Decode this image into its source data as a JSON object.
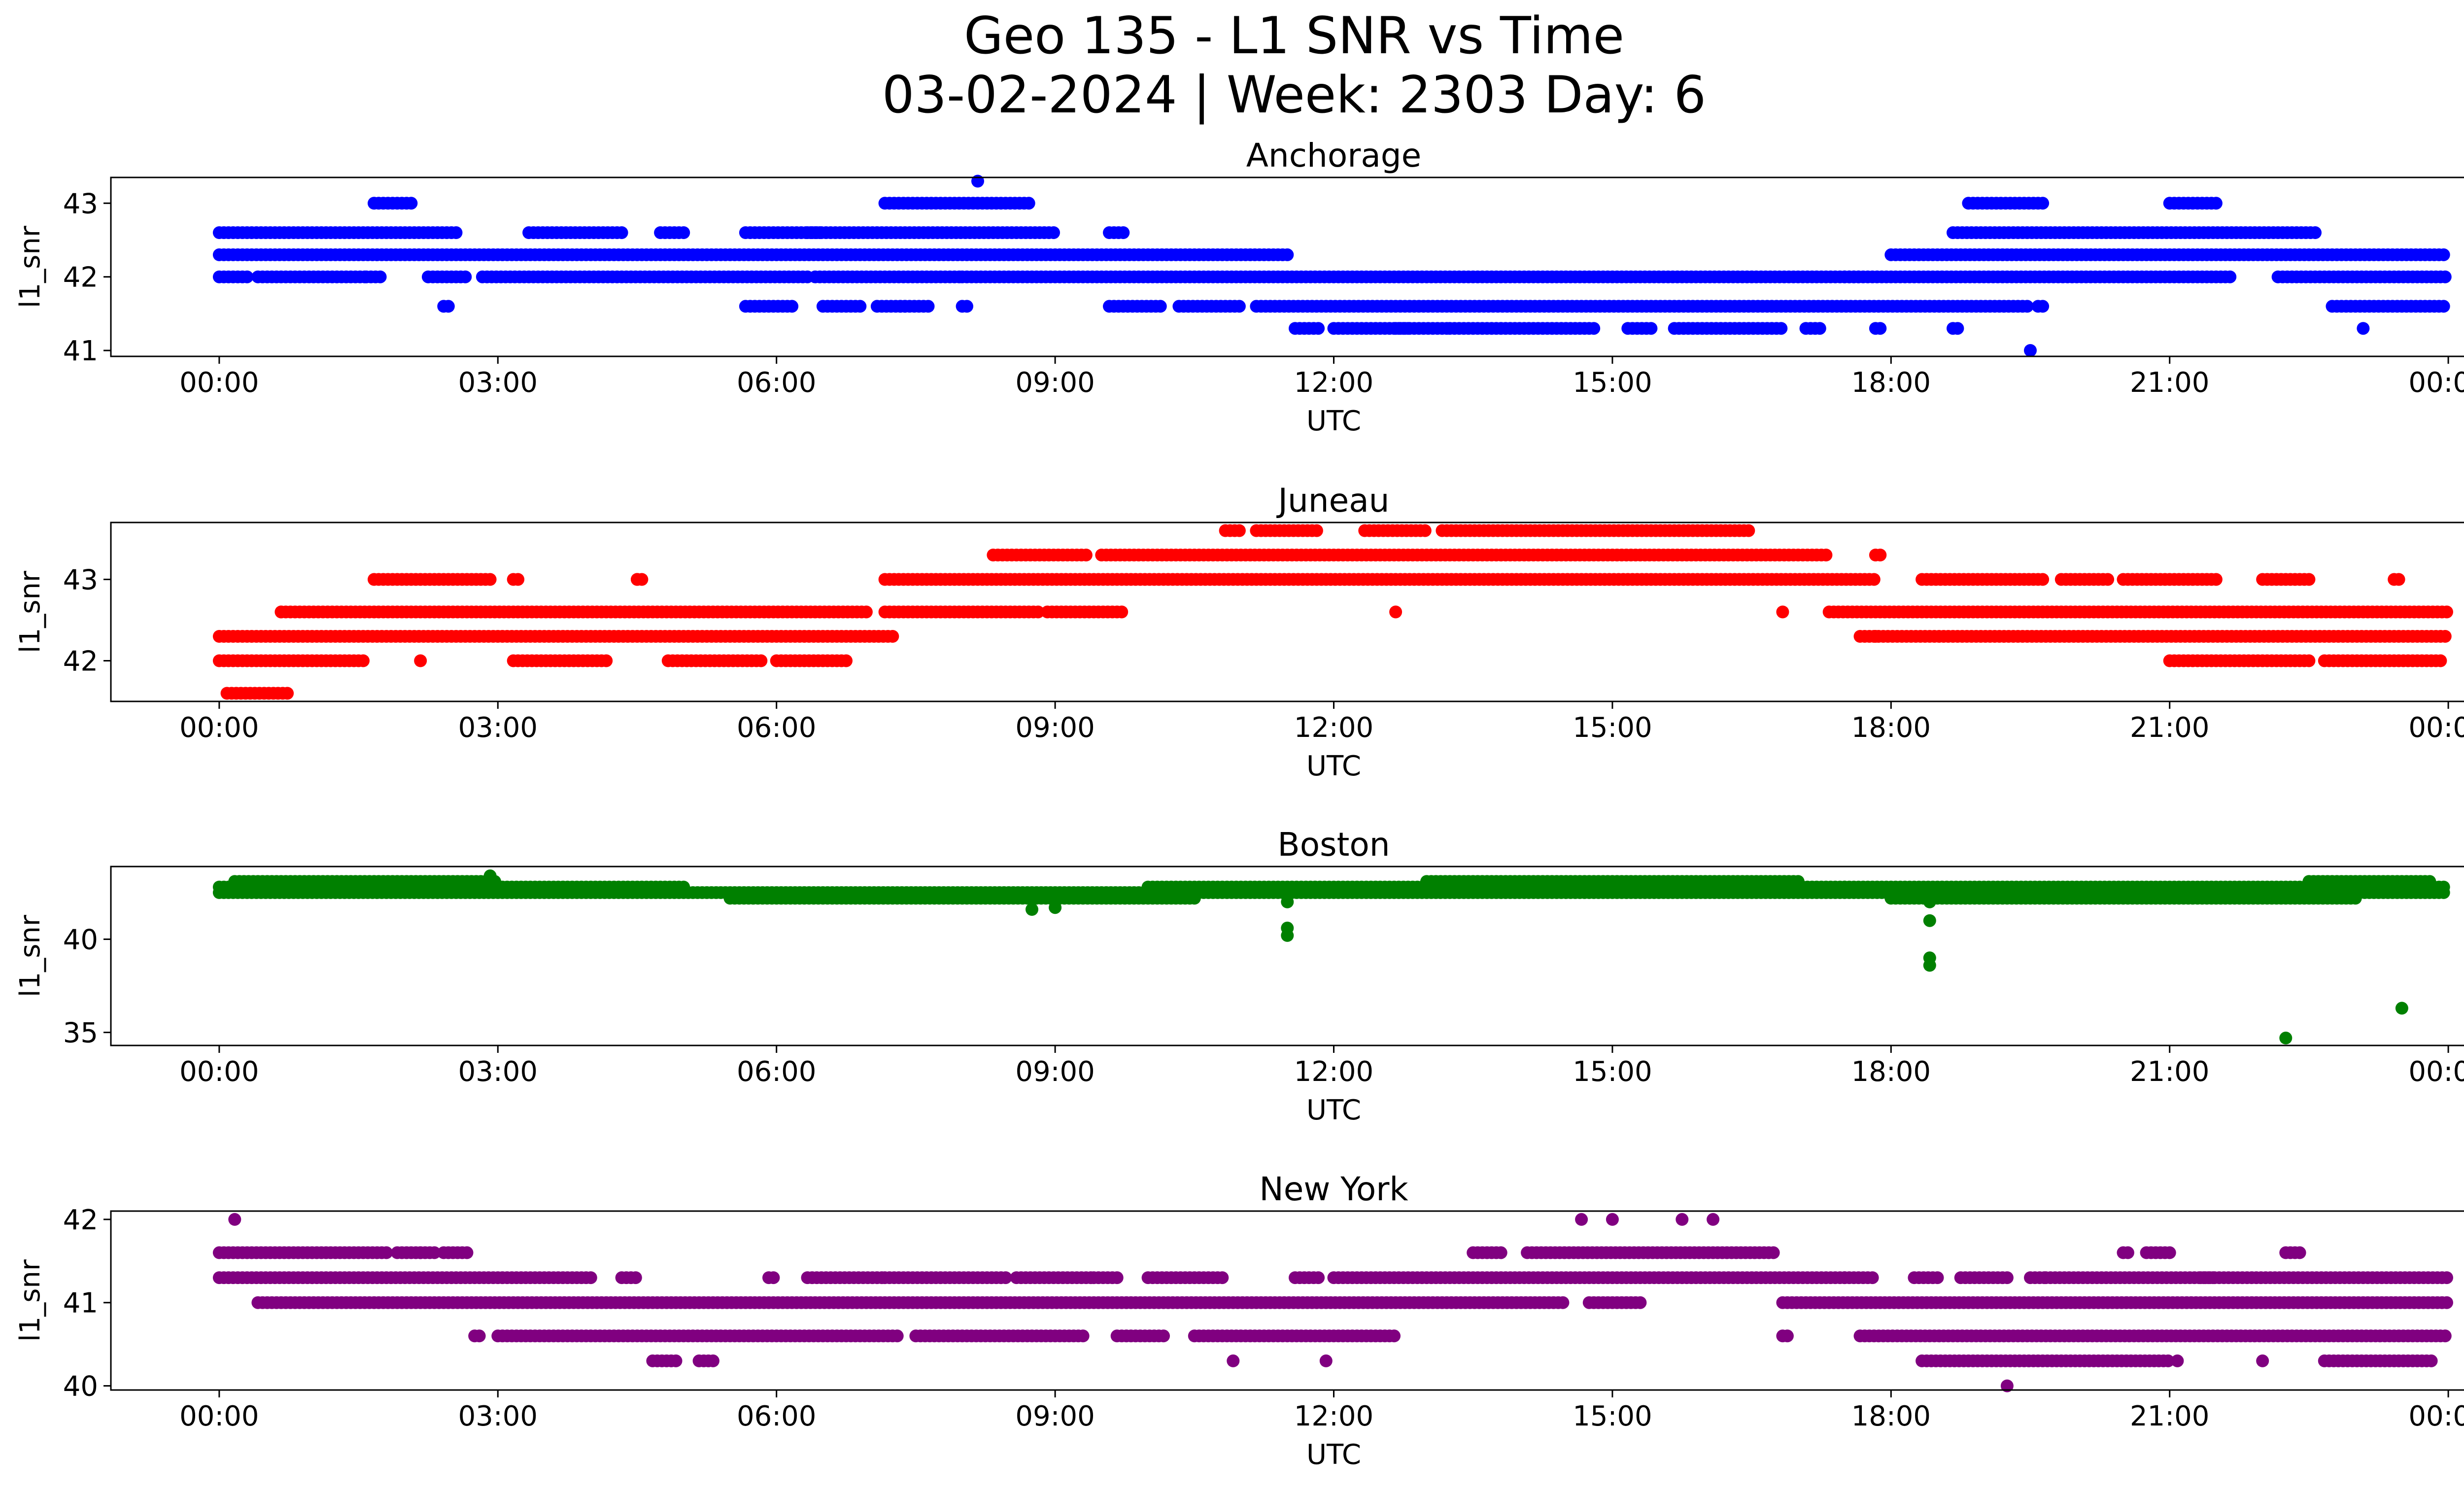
{
  "figure": {
    "title_line1": "Geo 135 - L1 SNR vs Time",
    "title_line2": "03-02-2024 | Week: 2303 Day: 6"
  },
  "chart_data": [
    {
      "type": "scatter",
      "title": "Anchorage",
      "xlabel": "UTC",
      "ylabel": "l1_snr",
      "color": "#0000ff",
      "xlim": [
        "2024-03-01 22:50",
        "2024-03-03 01:10"
      ],
      "ylim": [
        40.92,
        43.35
      ],
      "x_ticks": [
        "00:00",
        "03:00",
        "06:00",
        "09:00",
        "12:00",
        "15:00",
        "18:00",
        "21:00",
        "00:00"
      ],
      "y_ticks": [
        41,
        42,
        43
      ],
      "series": [
        {
          "bands": [
            {
              "y": 42.6,
              "segments": [
                [
                  "00:00",
                  "02:35"
                ],
                [
                  "03:20",
                  "04:20"
                ],
                [
                  "04:45",
                  "05:00"
                ],
                [
                  "05:40",
                  "06:30"
                ],
                [
                  "06:20",
                  "09:00"
                ],
                [
                  "09:35",
                  "09:45"
                ]
              ]
            },
            {
              "y": 42.3,
              "segments": [
                [
                  "00:00",
                  "11:30"
                ]
              ]
            },
            {
              "y": 42.0,
              "segments": [
                [
                  "00:00",
                  "00:20"
                ],
                [
                  "00:25",
                  "01:35"
                ],
                [
                  "01:35",
                  "01:45"
                ],
                [
                  "02:15",
                  "02:40"
                ],
                [
                  "02:50",
                  "06:20"
                ],
                [
                  "06:25",
                  "08:00"
                ],
                [
                  "08:00",
                  "17:40"
                ]
              ]
            },
            {
              "y": 41.6,
              "segments": [
                [
                  "02:25",
                  "02:30"
                ],
                [
                  "05:40",
                  "06:10"
                ],
                [
                  "06:30",
                  "06:55"
                ],
                [
                  "07:05",
                  "07:25"
                ],
                [
                  "07:20",
                  "07:40"
                ],
                [
                  "08:00",
                  "08:05"
                ],
                [
                  "09:35",
                  "10:10"
                ],
                [
                  "10:20",
                  "11:00"
                ],
                [
                  "11:10",
                  "19:30"
                ],
                [
                  "19:35",
                  "19:40"
                ]
              ]
            },
            {
              "y": 41.3,
              "segments": [
                [
                  "11:35",
                  "11:50"
                ],
                [
                  "12:00",
                  "12:50"
                ],
                [
                  "12:40",
                  "13:15"
                ],
                [
                  "13:15",
                  "14:50"
                ],
                [
                  "15:10",
                  "15:25"
                ],
                [
                  "15:40",
                  "16:50"
                ],
                [
                  "17:05",
                  "17:15"
                ],
                [
                  "17:50",
                  "17:55"
                ],
                [
                  "18:40",
                  "18:45"
                ]
              ]
            },
            {
              "y": 42.0,
              "segments": [
                [
                  "17:30",
                  "21:40"
                ],
                [
                  "22:10",
                  "23:59"
                ]
              ]
            },
            {
              "y": 42.3,
              "segments": [
                [
                  "18:00",
                  "23:59"
                ]
              ]
            },
            {
              "y": 42.6,
              "segments": [
                [
                  "18:40",
                  "22:35"
                ]
              ]
            },
            {
              "y": 43.0,
              "segments": [
                [
                  "01:40",
                  "02:05"
                ],
                [
                  "07:10",
                  "08:45"
                ],
                [
                  "18:50",
                  "19:40"
                ],
                [
                  "21:00",
                  "21:30"
                ]
              ]
            },
            {
              "y": 41.6,
              "segments": [
                [
                  "22:45",
                  "23:59"
                ]
              ]
            }
          ],
          "points": [
            [
              "08:10",
              43.3
            ],
            [
              "23:05",
              41.3
            ],
            [
              "19:30",
              41.0
            ]
          ]
        }
      ]
    },
    {
      "type": "scatter",
      "title": "Juneau",
      "xlabel": "UTC",
      "ylabel": "l1_snr",
      "color": "#ff0000",
      "xlim": [
        "2024-03-01 22:50",
        "2024-03-03 01:10"
      ],
      "ylim": [
        41.5,
        43.7
      ],
      "x_ticks": [
        "00:00",
        "03:00",
        "06:00",
        "09:00",
        "12:00",
        "15:00",
        "18:00",
        "21:00",
        "00:00"
      ],
      "y_ticks": [
        42,
        43
      ],
      "series": [
        {
          "bands": [
            {
              "y": 42.0,
              "segments": [
                [
                  "00:00",
                  "01:35"
                ],
                [
                  "03:10",
                  "04:10"
                ],
                [
                  "04:50",
                  "05:50"
                ],
                [
                  "06:00",
                  "06:45"
                ],
                [
                  "21:00",
                  "22:30"
                ],
                [
                  "22:40",
                  "23:55"
                ]
              ]
            },
            {
              "y": 42.3,
              "segments": [
                [
                  "00:00",
                  "07:15"
                ],
                [
                  "17:40",
                  "23:59"
                ]
              ]
            },
            {
              "y": 42.6,
              "segments": [
                [
                  "00:40",
                  "07:00"
                ],
                [
                  "07:10",
                  "08:50"
                ],
                [
                  "08:55",
                  "09:45"
                ],
                [
                  "17:20",
                  "23:59"
                ]
              ]
            },
            {
              "y": 43.0,
              "segments": [
                [
                  "01:40",
                  "02:55"
                ],
                [
                  "03:10",
                  "03:15"
                ],
                [
                  "04:30",
                  "04:35"
                ],
                [
                  "07:10",
                  "17:50"
                ],
                [
                  "18:20",
                  "19:40"
                ],
                [
                  "19:50",
                  "20:20"
                ],
                [
                  "20:30",
                  "21:30"
                ],
                [
                  "22:00",
                  "22:30"
                ],
                [
                  "23:25",
                  "23:30"
                ]
              ]
            },
            {
              "y": 43.3,
              "segments": [
                [
                  "08:20",
                  "09:20"
                ],
                [
                  "09:30",
                  "17:20"
                ],
                [
                  "17:50",
                  "17:55"
                ]
              ]
            },
            {
              "y": 43.6,
              "segments": [
                [
                  "10:50",
                  "11:00"
                ],
                [
                  "11:10",
                  "11:50"
                ],
                [
                  "12:20",
                  "13:00"
                ],
                [
                  "13:10",
                  "16:30"
                ]
              ]
            },
            {
              "y": 41.6,
              "segments": [
                [
                  "00:05",
                  "00:45"
                ]
              ]
            }
          ],
          "points": [
            [
              "00:40",
              42.6
            ],
            [
              "02:10",
              42.0
            ],
            [
              "04:30",
              43.0
            ],
            [
              "12:40",
              42.6
            ],
            [
              "16:50",
              42.6
            ],
            [
              "17:50",
              42.3
            ]
          ]
        }
      ]
    },
    {
      "type": "scatter",
      "title": "Boston",
      "xlabel": "UTC",
      "ylabel": "l1_snr",
      "color": "#008000",
      "xlim": [
        "2024-03-01 22:50",
        "2024-03-03 01:10"
      ],
      "ylim": [
        34.3,
        43.9
      ],
      "x_ticks": [
        "00:00",
        "03:00",
        "06:00",
        "09:00",
        "12:00",
        "15:00",
        "18:00",
        "21:00",
        "00:00"
      ],
      "y_ticks": [
        35,
        40
      ],
      "series": [
        {
          "bands": [
            {
              "y": 42.8,
              "segments": [
                [
                  "00:00",
                  "05:00"
                ],
                [
                  "10:00",
                  "17:30"
                ],
                [
                  "17:30",
                  "23:59"
                ]
              ]
            },
            {
              "y": 42.5,
              "segments": [
                [
                  "00:00",
                  "23:59"
                ]
              ]
            },
            {
              "y": 42.2,
              "segments": [
                [
                  "05:30",
                  "10:30"
                ],
                [
                  "18:00",
                  "23:00"
                ]
              ]
            },
            {
              "y": 43.1,
              "segments": [
                [
                  "00:10",
                  "03:00"
                ],
                [
                  "13:00",
                  "17:00"
                ],
                [
                  "22:30",
                  "23:50"
                ]
              ]
            }
          ],
          "points": [
            [
              "02:55",
              43.4
            ],
            [
              "11:30",
              40.6
            ],
            [
              "11:30",
              40.2
            ],
            [
              "11:30",
              42.0
            ],
            [
              "18:25",
              41.0
            ],
            [
              "18:25",
              39.0
            ],
            [
              "18:25",
              38.6
            ],
            [
              "18:25",
              42.0
            ],
            [
              "23:30",
              36.3
            ],
            [
              "22:15",
              34.7
            ],
            [
              "08:45",
              41.6
            ],
            [
              "09:00",
              41.7
            ]
          ]
        }
      ]
    },
    {
      "type": "scatter",
      "title": "New York",
      "xlabel": "UTC",
      "ylabel": "l1_snr",
      "color": "#800080",
      "xlim": [
        "2024-03-01 22:50",
        "2024-03-03 01:10"
      ],
      "ylim": [
        39.95,
        42.1
      ],
      "x_ticks": [
        "00:00",
        "03:00",
        "06:00",
        "09:00",
        "12:00",
        "15:00",
        "18:00",
        "21:00",
        "00:00"
      ],
      "y_ticks": [
        40,
        41,
        42
      ],
      "series": [
        {
          "bands": [
            {
              "y": 41.6,
              "segments": [
                [
                  "00:00",
                  "01:50"
                ],
                [
                  "01:55",
                  "02:10"
                ],
                [
                  "02:10",
                  "02:20"
                ],
                [
                  "02:25",
                  "02:40"
                ],
                [
                  "13:30",
                  "13:50"
                ],
                [
                  "14:05",
                  "16:45"
                ],
                [
                  "20:30",
                  "20:35"
                ],
                [
                  "20:45",
                  "21:00"
                ],
                [
                  "22:15",
                  "22:25"
                ]
              ]
            },
            {
              "y": 41.3,
              "segments": [
                [
                  "00:00",
                  "04:00"
                ],
                [
                  "04:20",
                  "04:30"
                ],
                [
                  "05:55",
                  "06:00"
                ],
                [
                  "06:20",
                  "07:10"
                ],
                [
                  "07:10",
                  "08:30"
                ],
                [
                  "08:35",
                  "09:25"
                ],
                [
                  "09:25",
                  "09:40"
                ],
                [
                  "10:00",
                  "10:50"
                ],
                [
                  "11:35",
                  "11:50"
                ],
                [
                  "12:00",
                  "17:30"
                ],
                [
                  "17:30",
                  "17:50"
                ],
                [
                  "18:15",
                  "18:30"
                ],
                [
                  "18:45",
                  "19:15"
                ],
                [
                  "19:30",
                  "19:40"
                ],
                [
                  "19:40",
                  "21:30"
                ],
                [
                  "21:20",
                  "23:59"
                ]
              ]
            },
            {
              "y": 41.0,
              "segments": [
                [
                  "00:25",
                  "14:30"
                ],
                [
                  "14:45",
                  "15:20"
                ],
                [
                  "16:50",
                  "23:59"
                ]
              ]
            },
            {
              "y": 40.6,
              "segments": [
                [
                  "02:45",
                  "02:50"
                ],
                [
                  "03:00",
                  "07:20"
                ],
                [
                  "07:30",
                  "09:20"
                ],
                [
                  "09:40",
                  "10:10"
                ],
                [
                  "10:30",
                  "12:40"
                ],
                [
                  "16:50",
                  "16:55"
                ],
                [
                  "17:40",
                  "23:59"
                ]
              ]
            },
            {
              "y": 40.3,
              "segments": [
                [
                  "04:40",
                  "04:55"
                ],
                [
                  "05:10",
                  "05:20"
                ],
                [
                  "18:20",
                  "21:00"
                ],
                [
                  "22:40",
                  "23:50"
                ]
              ]
            }
          ],
          "points": [
            [
              "00:10",
              42.0
            ],
            [
              "14:40",
              42.0
            ],
            [
              "15:00",
              42.0
            ],
            [
              "15:45",
              42.0
            ],
            [
              "16:05",
              42.0
            ],
            [
              "19:15",
              40.0
            ],
            [
              "10:55",
              40.3
            ],
            [
              "11:55",
              40.3
            ],
            [
              "22:00",
              40.3
            ],
            [
              "21:05",
              40.3
            ]
          ]
        }
      ]
    }
  ]
}
